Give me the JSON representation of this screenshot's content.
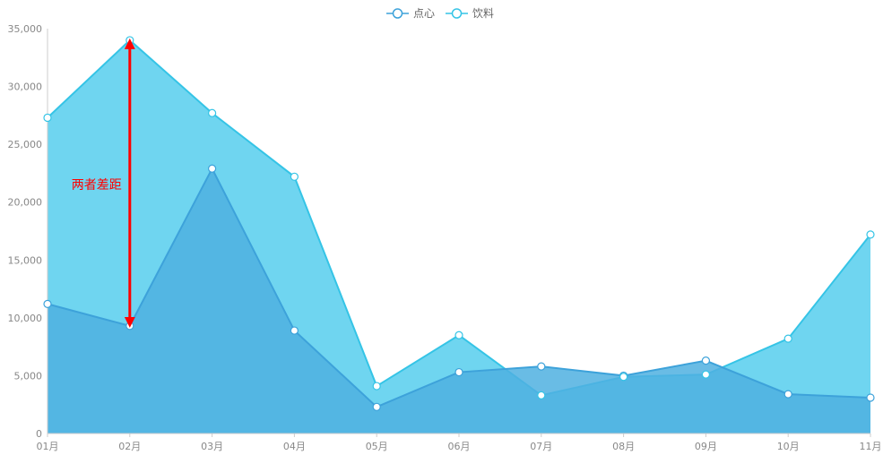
{
  "chart_data": {
    "type": "area",
    "categories": [
      "01月",
      "02月",
      "03月",
      "04月",
      "05月",
      "06月",
      "07月",
      "08月",
      "09月",
      "10月",
      "11月"
    ],
    "series": [
      {
        "name": "点心",
        "values": [
          11200,
          9300,
          22900,
          8900,
          2300,
          5300,
          5800,
          5000,
          6300,
          3400,
          3100
        ]
      },
      {
        "name": "饮料",
        "values": [
          27300,
          34000,
          27700,
          22200,
          4100,
          8500,
          3300,
          4900,
          5100,
          8200,
          17200
        ]
      }
    ],
    "y_ticks": [
      "0",
      "5,000",
      "10,000",
      "15,000",
      "20,000",
      "25,000",
      "30,000",
      "35,000"
    ],
    "ylim": [
      0,
      35000
    ],
    "legend": "top-center",
    "annotation": {
      "text": "两者差距",
      "category_index": 1,
      "from_value": 9300,
      "to_value": 34000
    },
    "colors": {
      "series_line": [
        "#3da2da",
        "#35c4e6"
      ],
      "series_fill": [
        "#4fb0e0",
        "#5fd0ee"
      ],
      "axis": "#cccccc",
      "annotation": "#ff0000",
      "tick_text": "#888888"
    }
  }
}
